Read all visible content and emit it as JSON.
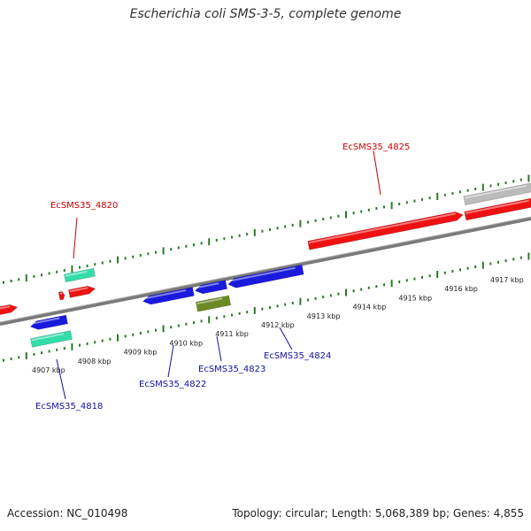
{
  "title": "Escherichia coli SMS-3-5, complete genome",
  "footer": {
    "accession": "Accession: NC_010498",
    "summary": "Topology: circular; Length: 5,068,389 bp; Genes: 4,855"
  },
  "colors": {
    "backbone": "#808080",
    "ticks": "#2a7a2a",
    "forward_gene": "#ee1111",
    "reverse_gene": "#1a1add",
    "rna": "#33ddaa",
    "pseudo": "#6b8a24",
    "other": "#bbbbbb",
    "label_red": "#cc0000",
    "label_blue": "#1111aa"
  },
  "scale": {
    "unit": "kbp",
    "labels": [
      {
        "kbp": 4907,
        "text": "4907 kbp"
      },
      {
        "kbp": 4908,
        "text": "4908 kbp"
      },
      {
        "kbp": 4909,
        "text": "4909 kbp"
      },
      {
        "kbp": 4910,
        "text": "4910 kbp"
      },
      {
        "kbp": 4911,
        "text": "4911 kbp"
      },
      {
        "kbp": 4912,
        "text": "4912 kbp"
      },
      {
        "kbp": 4913,
        "text": "4913 kbp"
      },
      {
        "kbp": 4914,
        "text": "4914 kbp"
      },
      {
        "kbp": 4915,
        "text": "4915 kbp"
      },
      {
        "kbp": 4916,
        "text": "4916 kbp"
      },
      {
        "kbp": 4917,
        "text": "4917 kbp"
      }
    ]
  },
  "gene_labels": [
    {
      "name": "EcSMS35_4818",
      "strand": "reverse"
    },
    {
      "name": "EcSMS35_4820",
      "strand": "forward"
    },
    {
      "name": "EcSMS35_4822",
      "strand": "reverse"
    },
    {
      "name": "EcSMS35_4823",
      "strand": "reverse"
    },
    {
      "name": "EcSMS35_4824",
      "strand": "reverse"
    },
    {
      "name": "EcSMS35_4825",
      "strand": "forward"
    }
  ]
}
